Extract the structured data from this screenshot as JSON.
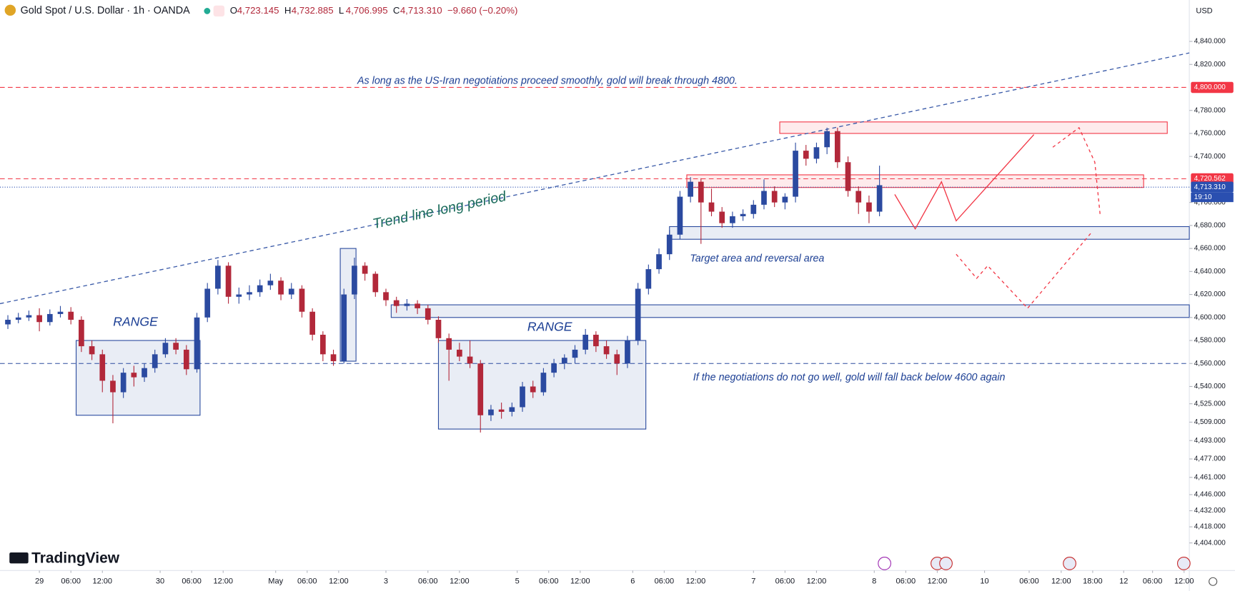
{
  "chart_data": {
    "type": "candlestick",
    "title": "Gold Spot / U.S. Dollar · 1h · OANDA",
    "ohlc": [
      {
        "label": "O",
        "value": "4,723.145"
      },
      {
        "label": "H",
        "value": "4,732.885"
      },
      {
        "label": "L",
        "value": "4,706.995"
      },
      {
        "label": "C",
        "value": "4,713.310"
      }
    ],
    "change": "−9.660 (−0.20%)",
    "currency": "USD",
    "logo": "TradingView",
    "up_color": "#2b4aa0",
    "down_color": "#b2283a",
    "xlim": [
      -7.5,
      219
    ],
    "ylim": [
      4380,
      4876
    ],
    "xticks": [
      {
        "value": 0,
        "label": "29"
      },
      {
        "value": 6,
        "label": "06:00"
      },
      {
        "value": 12,
        "label": "12:00"
      },
      {
        "value": 23,
        "label": "30"
      },
      {
        "value": 29,
        "label": "06:00"
      },
      {
        "value": 35,
        "label": "12:00"
      },
      {
        "value": 45,
        "label": "May"
      },
      {
        "value": 51,
        "label": "06:00"
      },
      {
        "value": 57,
        "label": "12:00"
      },
      {
        "value": 66,
        "label": "3"
      },
      {
        "value": 74,
        "label": "06:00"
      },
      {
        "value": 80,
        "label": "12:00"
      },
      {
        "value": 91,
        "label": "5"
      },
      {
        "value": 97,
        "label": "06:00"
      },
      {
        "value": 103,
        "label": "12:00"
      },
      {
        "value": 113,
        "label": "6"
      },
      {
        "value": 119,
        "label": "06:00"
      },
      {
        "value": 125,
        "label": "12:00"
      },
      {
        "value": 136,
        "label": "7"
      },
      {
        "value": 142,
        "label": "06:00"
      },
      {
        "value": 148,
        "label": "12:00"
      },
      {
        "value": 159,
        "label": "8"
      },
      {
        "value": 165,
        "label": "06:00"
      },
      {
        "value": 171,
        "label": "12:00"
      },
      {
        "value": 180,
        "label": "10"
      },
      {
        "value": 188.5,
        "label": "06:00"
      },
      {
        "value": 194.6,
        "label": "12:00"
      },
      {
        "value": 200.6,
        "label": "18:00"
      },
      {
        "value": 206.5,
        "label": "12"
      },
      {
        "value": 212,
        "label": "06:00"
      },
      {
        "value": 218,
        "label": "12:00"
      }
    ],
    "yticks": [
      {
        "value": 4840,
        "label": "4,840.000"
      },
      {
        "value": 4820,
        "label": "4,820.000"
      },
      {
        "value": 4780,
        "label": "4,780.000"
      },
      {
        "value": 4760,
        "label": "4,760.000"
      },
      {
        "value": 4740,
        "label": "4,740.000"
      },
      {
        "value": 4700,
        "label": "4,700.000"
      },
      {
        "value": 4680,
        "label": "4,680.000"
      },
      {
        "value": 4660,
        "label": "4,660.000"
      },
      {
        "value": 4640,
        "label": "4,640.000"
      },
      {
        "value": 4620,
        "label": "4,620.000"
      },
      {
        "value": 4600,
        "label": "4,600.000"
      },
      {
        "value": 4580,
        "label": "4,580.000"
      },
      {
        "value": 4560,
        "label": "4,560.000"
      },
      {
        "value": 4540,
        "label": "4,540.000"
      },
      {
        "value": 4525,
        "label": "4,525.000"
      },
      {
        "value": 4509,
        "label": "4,509.000"
      },
      {
        "value": 4493,
        "label": "4,493.000"
      },
      {
        "value": 4477,
        "label": "4,477.000"
      },
      {
        "value": 4461,
        "label": "4,461.000"
      },
      {
        "value": 4446,
        "label": "4,446.000"
      },
      {
        "value": 4432,
        "label": "4,432.000"
      },
      {
        "value": 4418,
        "label": "4,418.000"
      },
      {
        "value": 4404,
        "label": "4,404.000"
      }
    ],
    "x": [
      -6,
      -4,
      -2,
      0,
      2,
      4,
      6,
      8,
      10,
      12,
      14,
      16,
      18,
      20,
      22,
      24,
      26,
      28,
      30,
      32,
      34,
      36,
      38,
      40,
      42,
      44,
      46,
      48,
      50,
      52,
      54,
      56,
      58,
      60,
      62,
      64,
      66,
      68,
      70,
      72,
      74,
      76,
      78,
      80,
      82,
      84,
      86,
      88,
      90,
      92,
      94,
      96,
      98,
      100,
      102,
      104,
      106,
      108,
      110,
      112,
      114,
      116,
      118,
      120,
      122,
      124,
      126,
      128,
      130,
      132,
      134,
      136,
      138,
      140,
      142,
      144,
      146,
      148,
      150,
      152,
      154,
      156,
      158,
      160
    ],
    "candles": [
      [
        4594,
        4602,
        4590,
        4598
      ],
      [
        4598,
        4604,
        4595,
        4600
      ],
      [
        4600,
        4606,
        4597,
        4602
      ],
      [
        4602,
        4608,
        4588,
        4596
      ],
      [
        4596,
        4607,
        4593,
        4603
      ],
      [
        4603,
        4610,
        4600,
        4605
      ],
      [
        4605,
        4609,
        4594,
        4598
      ],
      [
        4598,
        4601,
        4570,
        4575
      ],
      [
        4575,
        4580,
        4563,
        4568
      ],
      [
        4568,
        4572,
        4535,
        4545
      ],
      [
        4545,
        4550,
        4508,
        4535
      ],
      [
        4535,
        4556,
        4530,
        4552
      ],
      [
        4552,
        4558,
        4540,
        4548
      ],
      [
        4548,
        4560,
        4544,
        4556
      ],
      [
        4556,
        4572,
        4552,
        4568
      ],
      [
        4568,
        4582,
        4565,
        4578
      ],
      [
        4578,
        4582,
        4568,
        4572
      ],
      [
        4572,
        4576,
        4550,
        4555
      ],
      [
        4555,
        4604,
        4552,
        4600
      ],
      [
        4600,
        4630,
        4596,
        4625
      ],
      [
        4625,
        4650,
        4620,
        4645
      ],
      [
        4645,
        4648,
        4612,
        4618
      ],
      [
        4618,
        4626,
        4612,
        4620
      ],
      [
        4620,
        4628,
        4615,
        4622
      ],
      [
        4622,
        4633,
        4618,
        4628
      ],
      [
        4628,
        4638,
        4624,
        4632
      ],
      [
        4632,
        4635,
        4615,
        4620
      ],
      [
        4620,
        4630,
        4616,
        4625
      ],
      [
        4625,
        4628,
        4600,
        4605
      ],
      [
        4605,
        4608,
        4580,
        4585
      ],
      [
        4585,
        4588,
        4562,
        4568
      ],
      [
        4568,
        4572,
        4558,
        4562
      ],
      [
        4562,
        4625,
        4560,
        4620
      ],
      [
        4620,
        4652,
        4616,
        4645
      ],
      [
        4645,
        4648,
        4632,
        4638
      ],
      [
        4638,
        4640,
        4618,
        4622
      ],
      [
        4622,
        4625,
        4610,
        4615
      ],
      [
        4615,
        4618,
        4604,
        4610
      ],
      [
        4610,
        4616,
        4606,
        4612
      ],
      [
        4612,
        4615,
        4603,
        4608
      ],
      [
        4608,
        4611,
        4594,
        4598
      ],
      [
        4598,
        4601,
        4578,
        4582
      ],
      [
        4582,
        4586,
        4545,
        4572
      ],
      [
        4572,
        4578,
        4562,
        4566
      ],
      [
        4566,
        4580,
        4556,
        4560
      ],
      [
        4560,
        4563,
        4500,
        4515
      ],
      [
        4515,
        4524,
        4510,
        4520
      ],
      [
        4520,
        4526,
        4512,
        4518
      ],
      [
        4518,
        4526,
        4514,
        4522
      ],
      [
        4522,
        4544,
        4518,
        4540
      ],
      [
        4540,
        4545,
        4530,
        4535
      ],
      [
        4535,
        4556,
        4532,
        4552
      ],
      [
        4552,
        4564,
        4548,
        4560
      ],
      [
        4560,
        4568,
        4555,
        4565
      ],
      [
        4565,
        4576,
        4560,
        4572
      ],
      [
        4572,
        4590,
        4568,
        4585
      ],
      [
        4585,
        4588,
        4570,
        4575
      ],
      [
        4575,
        4580,
        4564,
        4568
      ],
      [
        4568,
        4572,
        4550,
        4560
      ],
      [
        4560,
        4584,
        4556,
        4580
      ],
      [
        4580,
        4630,
        4576,
        4625
      ],
      [
        4625,
        4646,
        4620,
        4642
      ],
      [
        4642,
        4660,
        4638,
        4655
      ],
      [
        4655,
        4676,
        4650,
        4672
      ],
      [
        4672,
        4710,
        4668,
        4705
      ],
      [
        4705,
        4722,
        4700,
        4718
      ],
      [
        4718,
        4721,
        4664,
        4700
      ],
      [
        4700,
        4712,
        4688,
        4692
      ],
      [
        4692,
        4696,
        4678,
        4682
      ],
      [
        4682,
        4692,
        4678,
        4688
      ],
      [
        4688,
        4694,
        4684,
        4690
      ],
      [
        4690,
        4702,
        4686,
        4698
      ],
      [
        4698,
        4720,
        4694,
        4710
      ],
      [
        4710,
        4714,
        4696,
        4700
      ],
      [
        4700,
        4708,
        4694,
        4705
      ],
      [
        4705,
        4752,
        4700,
        4745
      ],
      [
        4745,
        4750,
        4732,
        4738
      ],
      [
        4738,
        4752,
        4734,
        4748
      ],
      [
        4748,
        4765,
        4742,
        4762
      ],
      [
        4762,
        4765,
        4730,
        4735
      ],
      [
        4735,
        4740,
        4705,
        4710
      ],
      [
        4710,
        4714,
        4690,
        4700
      ],
      [
        4700,
        4706,
        4682,
        4692
      ],
      [
        4692,
        4732,
        4688,
        4715
      ]
    ],
    "hlines": [
      {
        "value": 4800,
        "label": "4,800.000",
        "color": "#f23645",
        "dash": "6 4"
      },
      {
        "value": 4720.562,
        "label": "4,720.562",
        "color": "#f23645",
        "dash": "6 4"
      },
      {
        "value": 4713.31,
        "label": "4,713.310",
        "color": "#2a4fb0",
        "dash": "1 2"
      },
      {
        "value": 4560,
        "color": "#2a4a9e",
        "dash": "6 4"
      }
    ],
    "countdown": "19:10",
    "zones": [
      {
        "x": [
          141,
          214.8
        ],
        "y": [
          4760,
          4770
        ],
        "color": "#f23645"
      },
      {
        "x": [
          123.3,
          210.3
        ],
        "y": [
          4713,
          4724
        ],
        "color": "#f23645"
      },
      {
        "x": [
          120,
          219
        ],
        "y": [
          4668,
          4679
        ],
        "color": "#2a4a9e"
      },
      {
        "x": [
          67,
          219
        ],
        "y": [
          4600,
          4611
        ],
        "color": "#2a4a9e"
      },
      {
        "x": [
          7,
          30.6
        ],
        "y": [
          4515,
          4580
        ],
        "color": "#2a4a9e"
      },
      {
        "x": [
          76,
          115.5
        ],
        "y": [
          4503,
          4580
        ],
        "color": "#2a4a9e"
      },
      {
        "x": [
          57.3,
          60.3
        ],
        "y": [
          4562,
          4660
        ],
        "color": "#2a4a9e"
      }
    ],
    "drawings": [
      {
        "color": "#3a5aa8",
        "dash": "5 4",
        "points": [
          [
            -7.5,
            4612
          ],
          [
            219,
            4830
          ]
        ]
      },
      {
        "color": "#f23645",
        "dash": "",
        "points": [
          [
            162.9,
            4707
          ],
          [
            166.8,
            4677
          ],
          [
            171.8,
            4718
          ],
          [
            174.6,
            4684
          ],
          [
            189.4,
            4759
          ]
        ]
      },
      {
        "color": "#f23645",
        "dash": "4 4",
        "points": [
          [
            193,
            4748
          ],
          [
            198,
            4765
          ],
          [
            201,
            4735
          ],
          [
            202,
            4690
          ]
        ]
      },
      {
        "color": "#f23645",
        "dash": "4 4",
        "points": [
          [
            174.6,
            4655
          ],
          [
            178.5,
            4634
          ],
          [
            180.6,
            4645
          ],
          [
            188.2,
            4608
          ],
          [
            200.2,
            4673
          ]
        ]
      }
    ],
    "annotations": [
      "As long as the US-Iran negotiations proceed smoothly, gold will break through 4800.",
      "Trend line long period",
      "RANGE",
      "RANGE",
      "Target area and reversal area",
      "If the negotiations do not go well, gold will fall back below 4600 again"
    ]
  }
}
